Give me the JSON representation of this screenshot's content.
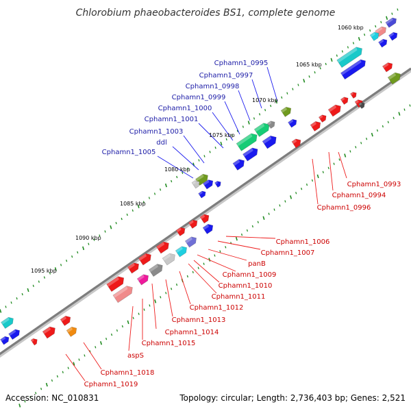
{
  "title": "Chlorobium phaeobacteroides BS1, complete genome",
  "accession": "Accession: NC_010831",
  "summary": "Topology: circular; Length: 2,736,403 bp; Genes: 2,521",
  "colors": {
    "backbone": "#8a8a8a",
    "tick": "#1f8a1f",
    "plus_label": "#1a1aa6",
    "minus_label": "#cc0000"
  },
  "kbp_labels": [
    "1060 kbp",
    "1065 kbp",
    "1070 kbp",
    "1075 kbp",
    "1080 kbp",
    "1085 kbp",
    "1090 kbp",
    "1095 kbp"
  ],
  "plus_gene_labels": [
    "Cphamn1_0995",
    "Cphamn1_0997",
    "Cphamn1_0998",
    "Cphamn1_0999",
    "Cphamn1_1000",
    "Cphamn1_1001",
    "Cphamn1_1003",
    "ddl",
    "Cphamn1_1005"
  ],
  "minus_gene_labels": [
    "Cphamn1_0993",
    "Cphamn1_0994",
    "Cphamn1_0996",
    "Cphamn1_1006",
    "Cphamn1_1007",
    "panB",
    "Cphamn1_1009",
    "Cphamn1_1010",
    "Cphamn1_1011",
    "Cphamn1_1012",
    "Cphamn1_1013",
    "Cphamn1_1014",
    "Cphamn1_1015",
    "aspS",
    "Cphamn1_1018",
    "Cphamn1_1019"
  ]
}
